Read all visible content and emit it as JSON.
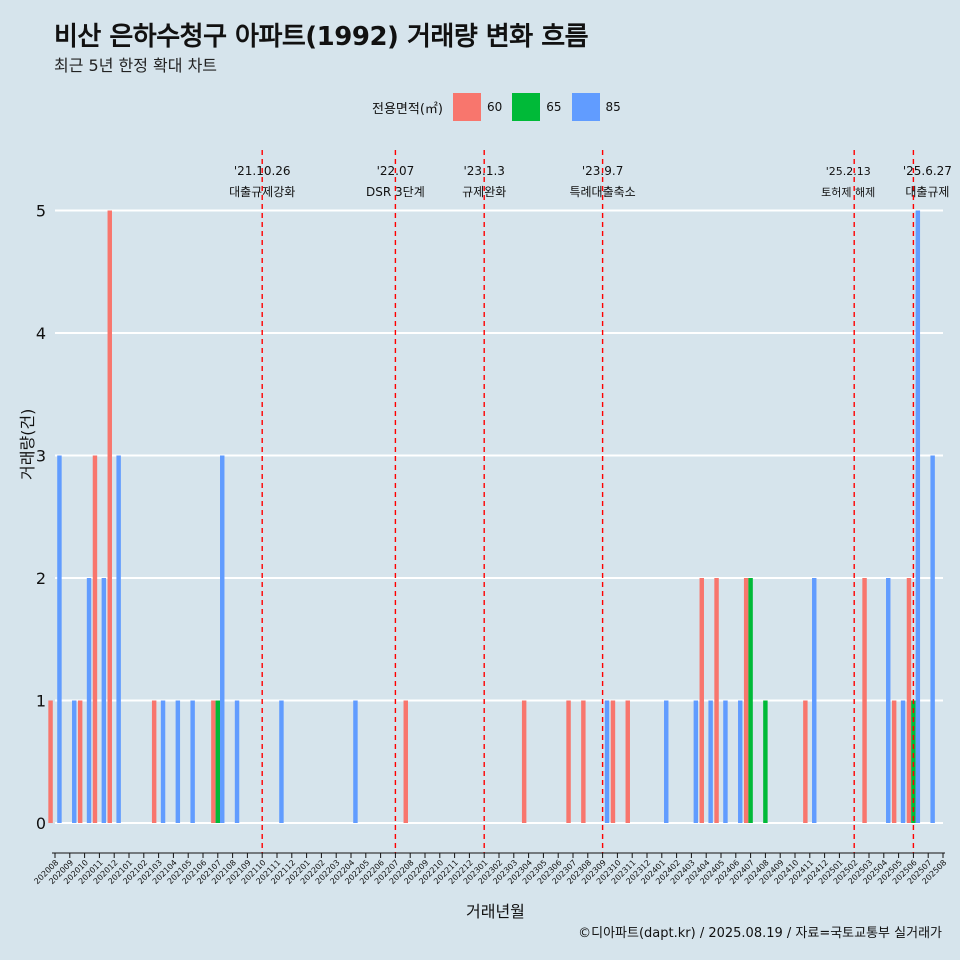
{
  "title": "비산 은하수청구 아파트(1992) 거래량 변화 흐름",
  "subtitle": "최근 5년 한정 확대 차트",
  "legend": {
    "title": "전용면적(㎡)",
    "items": [
      {
        "label": "60",
        "color": "#f8766d"
      },
      {
        "label": "65",
        "color": "#00ba38"
      },
      {
        "label": "85",
        "color": "#619cff"
      }
    ]
  },
  "caption": "©디아파트(dapt.kr) / 2025.08.19 / 자료=국토교통부 실거래가",
  "chart_data": {
    "type": "bar",
    "xlabel": "거래년월",
    "ylabel": "거래량(건)",
    "ylim": [
      0,
      5
    ],
    "y_ticks": [
      0,
      1,
      2,
      3,
      4,
      5
    ],
    "grid": true,
    "legend_position": "top",
    "categories": [
      "202008",
      "202009",
      "202010",
      "202011",
      "202012",
      "202101",
      "202102",
      "202103",
      "202104",
      "202105",
      "202106",
      "202107",
      "202108",
      "202109",
      "202110",
      "202111",
      "202112",
      "202201",
      "202202",
      "202203",
      "202204",
      "202205",
      "202206",
      "202207",
      "202208",
      "202209",
      "202210",
      "202211",
      "202212",
      "202301",
      "202302",
      "202303",
      "202304",
      "202305",
      "202306",
      "202307",
      "202308",
      "202309",
      "202310",
      "202311",
      "202312",
      "202401",
      "202402",
      "202403",
      "202404",
      "202405",
      "202406",
      "202407",
      "202408",
      "202409",
      "202410",
      "202411",
      "202412",
      "202501",
      "202502",
      "202503",
      "202504",
      "202505",
      "202506",
      "202507",
      "202508"
    ],
    "series": [
      {
        "name": "60",
        "color": "#f8766d",
        "values": [
          1,
          0,
          1,
          3,
          5,
          0,
          0,
          1,
          0,
          0,
          0,
          1,
          0,
          0,
          0,
          0,
          0,
          0,
          0,
          0,
          0,
          0,
          0,
          0,
          1,
          0,
          0,
          0,
          0,
          0,
          0,
          0,
          1,
          0,
          0,
          1,
          1,
          0,
          1,
          1,
          0,
          0,
          0,
          0,
          2,
          2,
          0,
          2,
          0,
          0,
          0,
          1,
          0,
          0,
          0,
          2,
          0,
          1,
          2,
          0,
          0
        ]
      },
      {
        "name": "65",
        "color": "#00ba38",
        "values": [
          0,
          0,
          0,
          0,
          0,
          0,
          0,
          0,
          0,
          0,
          0,
          1,
          0,
          0,
          0,
          0,
          0,
          0,
          0,
          0,
          0,
          0,
          0,
          0,
          0,
          0,
          0,
          0,
          0,
          0,
          0,
          0,
          0,
          0,
          0,
          0,
          0,
          0,
          0,
          0,
          0,
          0,
          0,
          0,
          0,
          0,
          0,
          2,
          1,
          0,
          0,
          0,
          0,
          0,
          0,
          0,
          0,
          0,
          1,
          0,
          0
        ]
      },
      {
        "name": "85",
        "color": "#619cff",
        "values": [
          3,
          1,
          2,
          2,
          3,
          0,
          0,
          1,
          1,
          1,
          0,
          3,
          1,
          0,
          0,
          1,
          0,
          0,
          0,
          0,
          1,
          0,
          0,
          0,
          0,
          0,
          0,
          0,
          0,
          0,
          0,
          0,
          0,
          0,
          0,
          0,
          0,
          1,
          0,
          0,
          0,
          1,
          0,
          1,
          1,
          1,
          1,
          0,
          0,
          0,
          0,
          2,
          0,
          0,
          0,
          0,
          2,
          1,
          5,
          3,
          0
        ]
      }
    ],
    "events": [
      {
        "category": "202110",
        "date": "'21.10.26",
        "label": "대출규제강화"
      },
      {
        "category": "202207",
        "date": "'22.07",
        "label": "DSR 3단계"
      },
      {
        "category": "202301",
        "date": "'23.1.3",
        "label": "규제완화"
      },
      {
        "category": "202309",
        "date": "'23.9.7",
        "label": "특례대출축소"
      },
      {
        "category": "202502",
        "date": "'25.2.13",
        "label": "토허제 해제"
      },
      {
        "category": "202506",
        "date": "'25.6.27",
        "label": "대출규제"
      }
    ]
  }
}
